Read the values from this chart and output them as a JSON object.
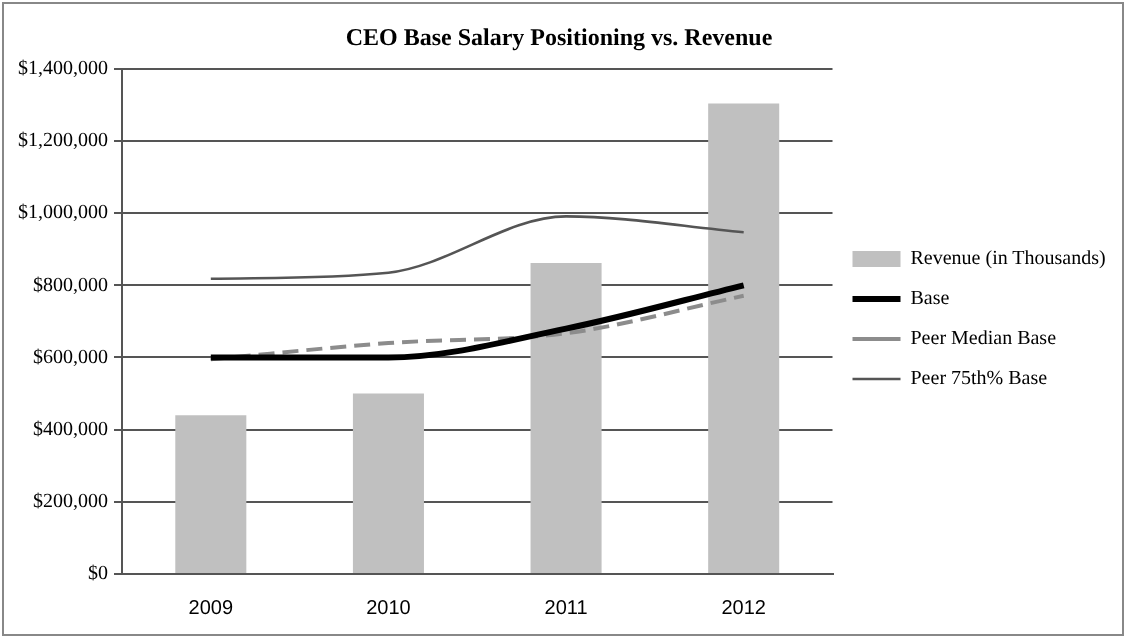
{
  "chart_data": {
    "type": "bar",
    "title": "CEO Base Salary Positioning vs. Revenue",
    "categories": [
      "2009",
      "2010",
      "2011",
      "2012"
    ],
    "series": [
      {
        "name": "Revenue (in Thousands)",
        "color": "#c0c0c0",
        "values": [
          440000,
          500000,
          862000,
          1304000
        ]
      },
      {
        "name": "Base",
        "type": "line",
        "color": "#000000",
        "line_style": "solid",
        "values": [
          600000,
          600000,
          680000,
          800000
        ]
      },
      {
        "name": "Peer Median Base",
        "type": "line",
        "color": "#8c8c8c",
        "line_style": "dashed",
        "values": [
          595000,
          640000,
          667000,
          771000
        ]
      },
      {
        "name": "Peer 75th% Base",
        "type": "line",
        "color": "#555555",
        "line_style": "solid",
        "values": [
          818000,
          835000,
          991000,
          947000
        ]
      }
    ],
    "ylim": [
      0,
      1400000
    ],
    "yticks": [
      {
        "value": 0,
        "label": "$0"
      },
      {
        "value": 200000,
        "label": "$200,000"
      },
      {
        "value": 400000,
        "label": "$400,000"
      },
      {
        "value": 600000,
        "label": "$600,000"
      },
      {
        "value": 800000,
        "label": "$800,000"
      },
      {
        "value": 1000000,
        "label": "$1,000,000"
      },
      {
        "value": 1200000,
        "label": "$1,200,000"
      },
      {
        "value": 1400000,
        "label": "$1,400,000"
      }
    ],
    "grid": "y",
    "legend": "right"
  }
}
